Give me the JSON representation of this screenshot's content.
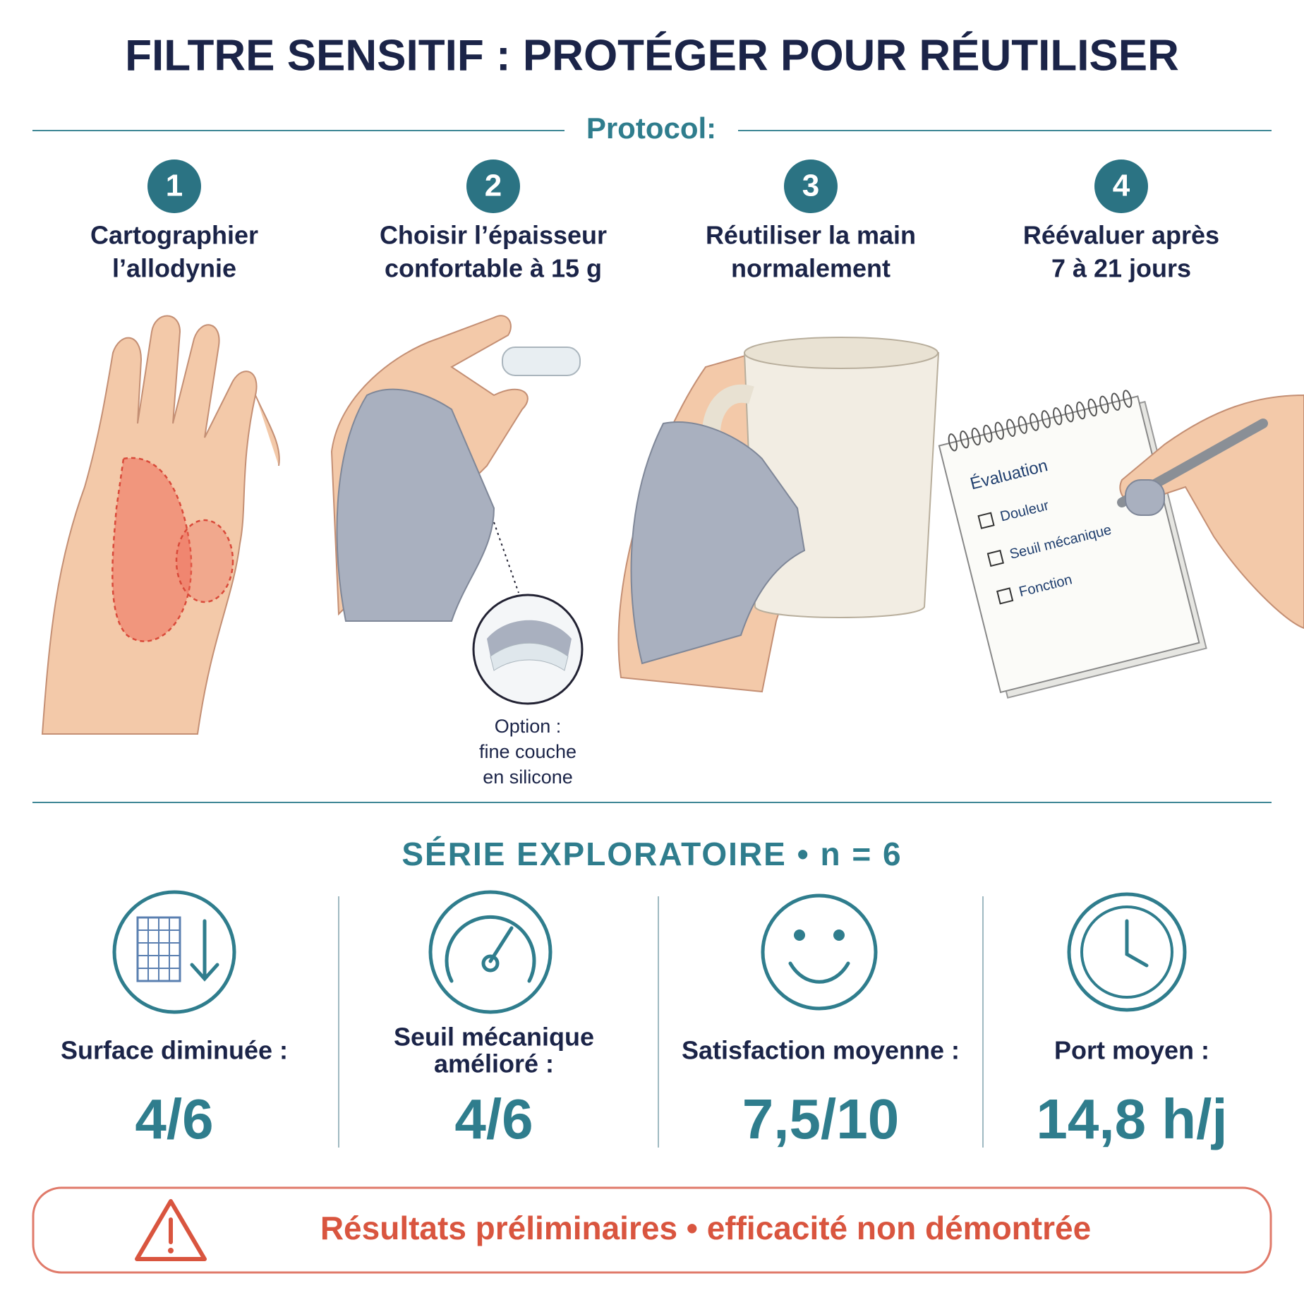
{
  "title": "FILTRE SENSITIF : PROTÉGER POUR RÉUTILISER",
  "protocol_label": "Protocol:",
  "steps": [
    {
      "number": "1",
      "lines": [
        "Cartographier",
        "l’allodynie"
      ]
    },
    {
      "number": "2",
      "lines": [
        "Choisir l’épaisseur",
        "confortable à 15 g"
      ]
    },
    {
      "number": "3",
      "lines": [
        "Réutiliser la main",
        "normalement"
      ]
    },
    {
      "number": "4",
      "lines": [
        "Réévaluer après",
        "7 à 21 jours"
      ]
    }
  ],
  "option_caption": [
    "Option :",
    "fine couche",
    "en silicone"
  ],
  "notepad": {
    "title": "Évaluation",
    "items": [
      "Douleur",
      "Seuil mécanique",
      "Fonction"
    ]
  },
  "series_heading": "SÉRIE EXPLORATOIRE • n = 6",
  "stats": [
    {
      "label": [
        "Surface diminuée :"
      ],
      "value": "4/6"
    },
    {
      "label": [
        "Seuil mécanique",
        "amélioré :"
      ],
      "value": "4/6"
    },
    {
      "label": [
        "Satisfaction moyenne :"
      ],
      "value": "7,5/10"
    },
    {
      "label": [
        "Port moyen :"
      ],
      "value": "14,8 h/j"
    }
  ],
  "warning": "Résultats préliminaires • efficacité non démontrée"
}
